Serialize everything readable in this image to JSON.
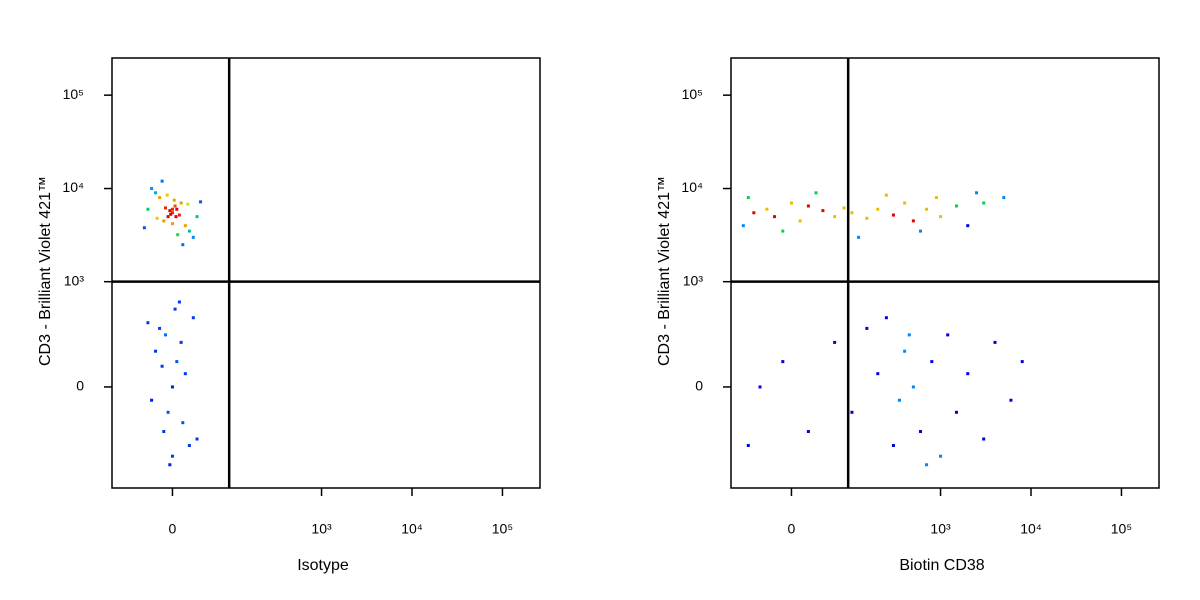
{
  "chart_data": [
    {
      "type": "scatter",
      "x_label": "Isotype",
      "y_label": "CD3 - Brilliant Violet 421™",
      "xscale": "asinh",
      "yscale": "asinh",
      "xlim": [
        -100,
        260000
      ],
      "ylim": [
        -900,
        250000
      ],
      "xticks": [
        0,
        {
          "value": 1000,
          "label": "10³"
        },
        {
          "value": 10000,
          "label": "10⁴"
        },
        {
          "value": 100000,
          "label": "10⁵"
        }
      ],
      "yticks": [
        0,
        {
          "value": 1000,
          "label": "10³"
        },
        {
          "value": 10000,
          "label": "10⁴"
        },
        {
          "value": 100000,
          "label": "10⁵"
        }
      ],
      "gates": {
        "x": 90,
        "y": 1000
      },
      "x": [
        0,
        5,
        -5,
        10,
        -10,
        3,
        -3,
        15,
        -15,
        20,
        -20,
        8,
        -8,
        25,
        -25,
        30,
        -30,
        12,
        -12,
        0,
        2,
        -2,
        18,
        -18,
        35,
        -35,
        6,
        -6,
        0,
        4,
        0,
        5,
        -5,
        10,
        -10,
        15,
        -15,
        20,
        -20,
        25,
        -25,
        0,
        8,
        -8,
        12,
        -12,
        30,
        -30,
        3,
        -3
      ],
      "y": [
        5500,
        6000,
        5000,
        7000,
        4500,
        6500,
        5800,
        4000,
        8000,
        3500,
        9000,
        5200,
        6200,
        3000,
        10000,
        5000,
        6000,
        2500,
        12000,
        4200,
        7500,
        5300,
        6800,
        4800,
        7200,
        3800,
        3200,
        8500,
        6000,
        5000,
        0,
        100,
        -100,
        200,
        -200,
        50,
        300,
        -300,
        150,
        400,
        -50,
        -400,
        600,
        250,
        -150,
        80,
        -250,
        350,
        500,
        -500
      ]
    },
    {
      "type": "scatter",
      "x_label": "Biotin CD38",
      "y_label": "CD3 - Brilliant Violet 421™",
      "xscale": "asinh",
      "yscale": "asinh",
      "xlim": [
        -100,
        260000
      ],
      "ylim": [
        -900,
        250000
      ],
      "xticks": [
        0,
        {
          "value": 1000,
          "label": "10³"
        },
        {
          "value": 10000,
          "label": "10⁴"
        },
        {
          "value": 100000,
          "label": "10⁵"
        }
      ],
      "yticks": [
        0,
        {
          "value": 1000,
          "label": "10³"
        },
        {
          "value": 10000,
          "label": "10⁴"
        },
        {
          "value": 100000,
          "label": "10⁵"
        }
      ],
      "gates": {
        "x": 90,
        "y": 1000
      },
      "x": [
        -50,
        -30,
        -20,
        0,
        10,
        20,
        40,
        60,
        80,
        100,
        150,
        200,
        300,
        400,
        500,
        700,
        1000,
        1500,
        2000,
        3000,
        -60,
        -10,
        30,
        120,
        250,
        600,
        900,
        2500,
        5000,
        -70,
        -40,
        -10,
        20,
        60,
        100,
        150,
        200,
        300,
        400,
        500,
        600,
        800,
        1000,
        1200,
        1500,
        2000,
        3000,
        4000,
        6000,
        8000,
        250,
        700,
        350,
        450,
        -60
      ],
      "y": [
        5500,
        6000,
        5000,
        7000,
        4500,
        6500,
        5800,
        5000,
        6200,
        5500,
        4800,
        6000,
        5200,
        7000,
        4500,
        6000,
        5000,
        6500,
        4000,
        7000,
        8000,
        3500,
        9000,
        3000,
        8500,
        3500,
        8000,
        9000,
        8000,
        4000,
        0,
        100,
        -200,
        200,
        -100,
        300,
        50,
        -300,
        150,
        0,
        -200,
        100,
        -400,
        250,
        -100,
        50,
        -250,
        200,
        -50,
        100,
        400,
        -500,
        -50,
        250,
        -300
      ]
    }
  ]
}
